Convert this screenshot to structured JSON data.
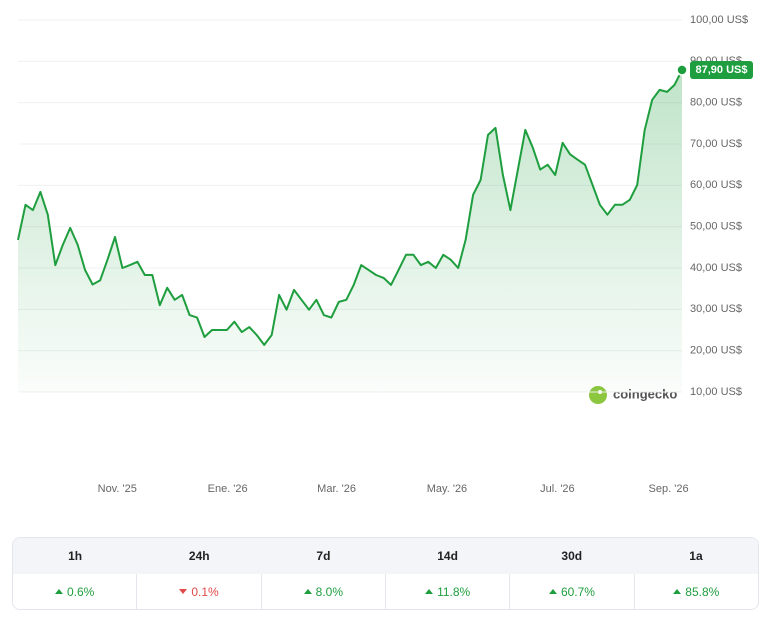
{
  "chart_data": {
    "type": "line",
    "values": [
      46.8,
      55.3,
      54,
      58.4,
      52.9,
      40.7,
      45.6,
      49.7,
      45.6,
      39.5,
      36,
      37,
      42,
      47.5,
      40,
      40.7,
      41.5,
      38.3,
      38.3,
      31,
      35.2,
      32.3,
      33.5,
      28.6,
      28,
      23.3,
      25,
      25,
      25,
      27,
      24.5,
      25.7,
      23.8,
      21.4,
      23.8,
      33.5,
      29.9,
      34.7,
      32.3,
      29.9,
      32.3,
      28.6,
      28,
      31.8,
      32.3,
      35.9,
      40.7,
      39.5,
      38.3,
      37.6,
      35.9,
      39.5,
      43.2,
      43.2,
      40.7,
      41.5,
      40,
      43.2,
      42,
      40,
      46.8,
      57.7,
      61.3,
      72.2,
      73.9,
      62.5,
      54,
      63.8,
      73.4,
      69.1,
      63.8,
      65,
      62.5,
      70.3,
      67.5,
      66.2,
      65,
      60.1,
      55.3,
      52.9,
      55.3,
      55.3,
      56.5,
      60.1,
      73.4,
      80.7,
      83.1,
      82.6,
      84.3,
      87.9
    ],
    "color": "#1e9e3e",
    "xlim": [
      0,
      89
    ],
    "xticks": [
      {
        "value": 13.3,
        "label": "Nov. '25"
      },
      {
        "value": 28.1,
        "label": "Ene. '26"
      },
      {
        "value": 42.7,
        "label": "Mar. '26"
      },
      {
        "value": 57.5,
        "label": "May. '26"
      },
      {
        "value": 72.3,
        "label": "Jul. '26"
      },
      {
        "value": 87.2,
        "label": "Sep. '26"
      }
    ],
    "ylim": [
      10,
      100
    ],
    "yticks": [
      {
        "value": 10,
        "label": "10,00 US$"
      },
      {
        "value": 20,
        "label": "20,00 US$"
      },
      {
        "value": 30,
        "label": "30,00 US$"
      },
      {
        "value": 40,
        "label": "40,00 US$"
      },
      {
        "value": 50,
        "label": "50,00 US$"
      },
      {
        "value": 60,
        "label": "60,00 US$"
      },
      {
        "value": 70,
        "label": "70,00 US$"
      },
      {
        "value": 80,
        "label": "80,00 US$"
      },
      {
        "value": 90,
        "label": "90,00 US$"
      },
      {
        "value": 100,
        "label": "100,00 US$"
      }
    ],
    "grid": true,
    "price_label": {
      "value": 87.9,
      "label": "87,90 US$"
    }
  },
  "brand": "coingecko",
  "changes": {
    "periods": [
      "1h",
      "24h",
      "7d",
      "14d",
      "30d",
      "1a"
    ],
    "values": [
      "0.6%",
      "0.1%",
      "8.0%",
      "11.8%",
      "60.7%",
      "85.8%"
    ],
    "directions": [
      "up",
      "down",
      "up",
      "up",
      "up",
      "up"
    ]
  }
}
